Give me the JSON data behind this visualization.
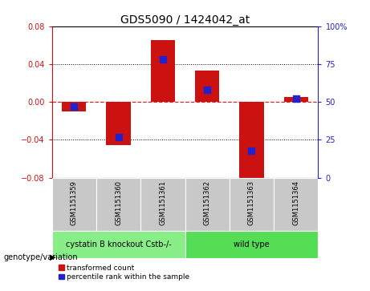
{
  "title": "GDS5090 / 1424042_at",
  "samples": [
    "GSM1151359",
    "GSM1151360",
    "GSM1151361",
    "GSM1151362",
    "GSM1151363",
    "GSM1151364"
  ],
  "transformed_count": [
    -0.01,
    -0.046,
    0.065,
    0.033,
    -0.087,
    0.005
  ],
  "percentile_rank": [
    47,
    27,
    78,
    58,
    18,
    52
  ],
  "ylim_left": [
    -0.08,
    0.08
  ],
  "ylim_right": [
    0,
    100
  ],
  "yticks_left": [
    -0.08,
    -0.04,
    0,
    0.04,
    0.08
  ],
  "yticks_right": [
    0,
    25,
    50,
    75,
    100
  ],
  "ytick_labels_right": [
    "0",
    "25",
    "50",
    "75",
    "100%"
  ],
  "bar_color": "#CC1111",
  "dot_color": "#2222CC",
  "zero_line_color": "#DD2222",
  "grid_color": "#000000",
  "bg_color": "#FFFFFF",
  "plot_bg_color": "#FFFFFF",
  "sample_cell_color": "#C8C8C8",
  "groups": [
    {
      "label": "cystatin B knockout Cstb-/-",
      "indices": [
        0,
        1,
        2
      ],
      "color": "#88EE88"
    },
    {
      "label": "wild type",
      "indices": [
        3,
        4,
        5
      ],
      "color": "#55DD55"
    }
  ],
  "legend_red_label": "transformed count",
  "legend_blue_label": "percentile rank within the sample",
  "xlabel_annotation": "genotype/variation",
  "left_axis_color": "#CC1111",
  "right_axis_color": "#2222CC",
  "bar_width": 0.55,
  "dot_size": 30,
  "tick_label_fontsize": 7,
  "title_fontsize": 10,
  "sample_fontsize": 6,
  "group_fontsize": 7
}
